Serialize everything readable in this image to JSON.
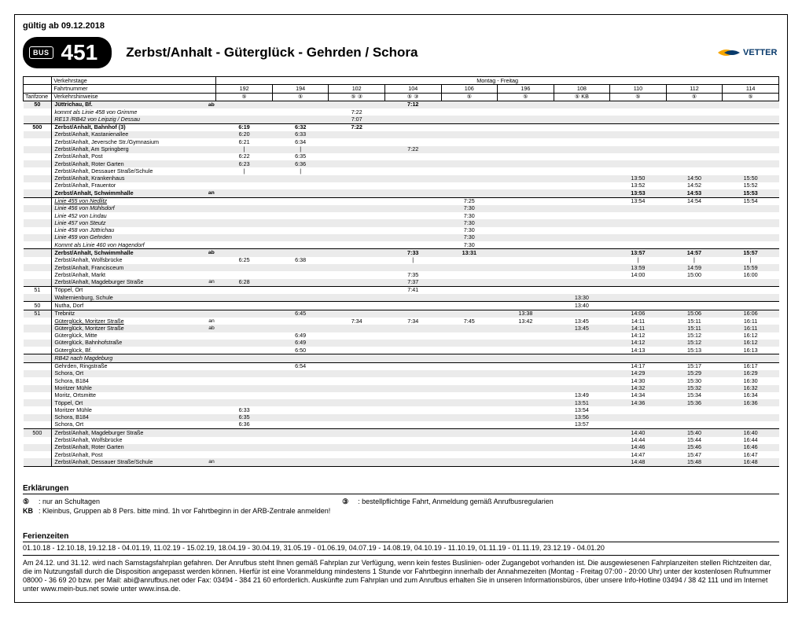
{
  "validity": "gültig ab 09.12.2018",
  "bus_label": "BUS",
  "route_number": "451",
  "route_title": "Zerbst/Anhalt - Güterglück - Gehrden / Schora",
  "logo_text": "VETTER",
  "days_label": "Montag - Freitag",
  "header_labels": {
    "verkehrstage": "Verkehrstage",
    "fahrtnummer": "Fahrtnummer",
    "tarifzone": "Tarifzone",
    "verkehrshinweise": "Verkehrshinweise"
  },
  "trips": [
    "192",
    "194",
    "102",
    "104",
    "106",
    "196",
    "108",
    "110",
    "112",
    "114"
  ],
  "hints": [
    "⑤",
    "⑤",
    "⑤    ③",
    "⑤    ③",
    "⑤",
    "⑤",
    "⑤    KB",
    "⑤",
    "⑤",
    "⑤"
  ],
  "rows": [
    {
      "zone": "50",
      "stop": "Jüttrichau, Bf.",
      "ab": "ab",
      "bold": true,
      "stripe": true,
      "sep_top": true,
      "t": [
        "",
        "",
        "",
        "7:12",
        "",
        "",
        "",
        "",
        "",
        ""
      ]
    },
    {
      "stop": "kommt als Linie 458 von Grimme",
      "italic": true,
      "t": [
        "",
        "",
        "7:22",
        "",
        "",
        "",
        "",
        "",
        "",
        ""
      ]
    },
    {
      "stop": "RE13 /RB42 von Leipzig / Dessau",
      "italic": true,
      "stripe": true,
      "t": [
        "",
        "",
        "7:07",
        "",
        "",
        "",
        "",
        "",
        "",
        ""
      ]
    },
    {
      "zone": "500",
      "stop": "Zerbst/Anhalt, Bahnhof (3)",
      "bold": true,
      "sep_top": true,
      "t": [
        "6:19",
        "6:32",
        "7:22",
        "",
        "",
        "",
        "",
        "",
        "",
        ""
      ]
    },
    {
      "stop": "Zerbst/Anhalt, Kastanienallee",
      "stripe": true,
      "t": [
        "6:20",
        "6:33",
        "",
        "",
        "",
        "",
        "",
        "",
        "",
        ""
      ]
    },
    {
      "stop": "Zerbst/Anhalt, Jeversche Str./Gymnasium",
      "t": [
        "6:21",
        "6:34",
        "",
        "",
        "",
        "",
        "",
        "",
        "",
        ""
      ]
    },
    {
      "stop": "Zerbst/Anhalt, Am Springberg",
      "stripe": true,
      "t": [
        "|",
        "|",
        "",
        "7:22",
        "",
        "",
        "",
        "",
        "",
        ""
      ]
    },
    {
      "stop": "Zerbst/Anhalt, Post",
      "t": [
        "6:22",
        "6:35",
        "",
        "",
        "",
        "",
        "",
        "",
        "",
        ""
      ]
    },
    {
      "stop": "Zerbst/Anhalt, Roter Garten",
      "stripe": true,
      "t": [
        "6:23",
        "6:36",
        "",
        "",
        "",
        "",
        "",
        "",
        "",
        ""
      ]
    },
    {
      "stop": "Zerbst/Anhalt, Dessauer Straße/Schule",
      "t": [
        "|",
        "|",
        "",
        "",
        "",
        "",
        "",
        "",
        "",
        ""
      ]
    },
    {
      "stop": "Zerbst/Anhalt, Krankenhaus",
      "stripe": true,
      "t": [
        "",
        "",
        "",
        "",
        "",
        "",
        "",
        "13:50",
        "14:50",
        "15:50"
      ]
    },
    {
      "stop": "Zerbst/Anhalt, Frauentor",
      "t": [
        "",
        "",
        "",
        "",
        "",
        "",
        "",
        "13:52",
        "14:52",
        "15:52"
      ]
    },
    {
      "stop": "Zerbst/Anhalt, Schwimmhalle",
      "ab": "an",
      "bold": true,
      "stripe": true,
      "t": [
        "",
        "",
        "",
        "",
        "",
        "",
        "",
        "13:53",
        "14:53",
        "15:53"
      ]
    },
    {
      "stop": "Linie 455 von Nedlitz",
      "italic": true,
      "underline": true,
      "sep_top": true,
      "t": [
        "",
        "",
        "",
        "",
        "7:25",
        "",
        "",
        "13:54",
        "14:54",
        "15:54"
      ]
    },
    {
      "stop": "Linie 456 von Mühlsdorf",
      "italic": true,
      "stripe": true,
      "t": [
        "",
        "",
        "",
        "",
        "7:30",
        "",
        "",
        "",
        "",
        ""
      ]
    },
    {
      "stop": "Linie 452 von Lindau",
      "italic": true,
      "t": [
        "",
        "",
        "",
        "",
        "7:30",
        "",
        "",
        "",
        "",
        ""
      ]
    },
    {
      "stop": "Linie 457 von Steutz",
      "italic": true,
      "stripe": true,
      "t": [
        "",
        "",
        "",
        "",
        "7:30",
        "",
        "",
        "",
        "",
        ""
      ]
    },
    {
      "stop": "Linie 458 von Jüttrichau",
      "italic": true,
      "t": [
        "",
        "",
        "",
        "",
        "7:30",
        "",
        "",
        "",
        "",
        ""
      ]
    },
    {
      "stop": "Linie 459 von Gehrden",
      "italic": true,
      "stripe": true,
      "t": [
        "",
        "",
        "",
        "",
        "7:30",
        "",
        "",
        "",
        "",
        ""
      ]
    },
    {
      "stop": "Kommt als Linie 460 von Hagendorf",
      "italic": true,
      "t": [
        "",
        "",
        "",
        "",
        "7:30",
        "",
        "",
        "",
        "",
        ""
      ]
    },
    {
      "stop": "Zerbst/Anhalt, Schwimmhalle",
      "ab": "ab",
      "bold": true,
      "stripe": true,
      "sep_top": true,
      "t": [
        "",
        "",
        "",
        "7:33",
        "13:31",
        "",
        "",
        "13:57",
        "14:57",
        "15:57"
      ]
    },
    {
      "stop": "Zerbst/Anhalt, Wolfsbrücke",
      "t": [
        "6:25",
        "6:38",
        "",
        "|",
        "",
        "",
        "",
        "|",
        "|",
        "|"
      ]
    },
    {
      "stop": "Zerbst/Anhalt, Francisceum",
      "stripe": true,
      "t": [
        "",
        "",
        "",
        "",
        "",
        "",
        "",
        "13:59",
        "14:59",
        "15:59"
      ]
    },
    {
      "stop": "Zerbst/Anhalt, Markt",
      "t": [
        "",
        "",
        "",
        "7:35",
        "",
        "",
        "",
        "14:00",
        "15:00",
        "16:00"
      ]
    },
    {
      "stop": "Zerbst/Anhalt, Magdeburger Straße",
      "ab": "an",
      "stripe": true,
      "t": [
        "6:28",
        "",
        "",
        "7:37",
        "",
        "",
        "",
        "",
        "",
        ""
      ]
    },
    {
      "zone": "51",
      "stop": "Töppel, Ort",
      "sep_top": true,
      "t": [
        "",
        "",
        "",
        "7:41",
        "",
        "",
        "",
        "",
        "",
        ""
      ]
    },
    {
      "stop": "Walternienburg, Schule",
      "stripe": true,
      "t": [
        "",
        "",
        "",
        "",
        "",
        "",
        "13:30",
        "",
        "",
        ""
      ]
    },
    {
      "zone": "50",
      "stop": "Nutha, Dorf",
      "sep_top": true,
      "t": [
        "",
        "",
        "",
        "",
        "",
        "",
        "13:40",
        "",
        "",
        ""
      ]
    },
    {
      "zone": "51",
      "stop": "Trebnitz",
      "stripe": true,
      "sep_top": true,
      "t": [
        "",
        "6:45",
        "",
        "",
        "",
        "13:38",
        "",
        "14:06",
        "15:06",
        "16:06"
      ]
    },
    {
      "stop": "Güterglück, Moritzer Straße",
      "ab": "an",
      "underline": true,
      "t": [
        "",
        "",
        "7:34",
        "7:34",
        "7:45",
        "13:42",
        "13:45",
        "14:11",
        "15:11",
        "16:11"
      ]
    },
    {
      "stop": "Güterglück, Moritzer Straße",
      "ab": "ab",
      "stripe": true,
      "t": [
        "",
        "",
        "",
        "",
        "",
        "",
        "13:45",
        "14:11",
        "15:11",
        "16:11"
      ]
    },
    {
      "stop": "Güterglück, Mitte",
      "t": [
        "",
        "6:49",
        "",
        "",
        "",
        "",
        "",
        "14:12",
        "15:12",
        "16:12"
      ]
    },
    {
      "stop": "Güterglück, Bahnhofstraße",
      "stripe": true,
      "t": [
        "",
        "6:49",
        "",
        "",
        "",
        "",
        "",
        "14:12",
        "15:12",
        "16:12"
      ]
    },
    {
      "stop": "Güterglück, Bf.",
      "t": [
        "",
        "6:50",
        "",
        "",
        "",
        "",
        "",
        "14:13",
        "15:13",
        "16:13"
      ]
    },
    {
      "stop": "RB42 nach Magdeburg",
      "italic": true,
      "stripe": true,
      "sep_top": true,
      "sep_bot": true,
      "t": [
        "",
        "",
        "",
        "",
        "",
        "",
        "",
        "",
        "",
        ""
      ]
    },
    {
      "stop": "Gehrden, Ringstraße",
      "t": [
        "",
        "6:54",
        "",
        "",
        "",
        "",
        "",
        "14:17",
        "15:17",
        "16:17"
      ]
    },
    {
      "stop": "Schora, Ort",
      "stripe": true,
      "t": [
        "",
        "",
        "",
        "",
        "",
        "",
        "",
        "14:29",
        "15:29",
        "16:29"
      ]
    },
    {
      "stop": "Schora, B184",
      "t": [
        "",
        "",
        "",
        "",
        "",
        "",
        "",
        "14:30",
        "15:30",
        "16:30"
      ]
    },
    {
      "stop": "Moritzer Mühle",
      "stripe": true,
      "t": [
        "",
        "",
        "",
        "",
        "",
        "",
        "",
        "14:32",
        "15:32",
        "16:32"
      ]
    },
    {
      "stop": "Moritz, Ortsmitte",
      "t": [
        "",
        "",
        "",
        "",
        "",
        "",
        "13:49",
        "14:34",
        "15:34",
        "16:34"
      ]
    },
    {
      "stop": "Töppel, Ort",
      "stripe": true,
      "t": [
        "",
        "",
        "",
        "",
        "",
        "",
        "13:51",
        "14:36",
        "15:36",
        "16:36"
      ]
    },
    {
      "stop": "Moritzer Mühle",
      "t": [
        "6:33",
        "",
        "",
        "",
        "",
        "",
        "13:54",
        "",
        "",
        ""
      ]
    },
    {
      "stop": "Schora, B184",
      "stripe": true,
      "t": [
        "6:35",
        "",
        "",
        "",
        "",
        "",
        "13:56",
        "",
        "",
        ""
      ]
    },
    {
      "stop": "Schora, Ort",
      "t": [
        "6:36",
        "",
        "",
        "",
        "",
        "",
        "13:57",
        "",
        "",
        ""
      ]
    },
    {
      "zone": "500",
      "stop": "Zerbst/Anhalt, Magdeburger Straße",
      "stripe": true,
      "sep_top": true,
      "t": [
        "",
        "",
        "",
        "",
        "",
        "",
        "",
        "14:40",
        "15:40",
        "16:40"
      ]
    },
    {
      "stop": "Zerbst/Anhalt, Wolfsbrücke",
      "t": [
        "",
        "",
        "",
        "",
        "",
        "",
        "",
        "14:44",
        "15:44",
        "16:44"
      ]
    },
    {
      "stop": "Zerbst/Anhalt, Roter Garten",
      "stripe": true,
      "t": [
        "",
        "",
        "",
        "",
        "",
        "",
        "",
        "14:46",
        "15:46",
        "16:46"
      ]
    },
    {
      "stop": "Zerbst/Anhalt, Post",
      "t": [
        "",
        "",
        "",
        "",
        "",
        "",
        "",
        "14:47",
        "15:47",
        "16:47"
      ]
    },
    {
      "stop": "Zerbst/Anhalt, Dessauer Straße/Schule",
      "ab": "an",
      "stripe": true,
      "sep_bot": true,
      "t": [
        "",
        "",
        "",
        "",
        "",
        "",
        "",
        "14:48",
        "15:48",
        "16:48"
      ]
    }
  ],
  "erk_title": "Erklärungen",
  "erk": [
    {
      "sym": "⑤",
      "text": ": nur an Schultagen"
    },
    {
      "sym": "③",
      "text": ": bestellpflichtige Fahrt, Anmeldung gemäß Anrufbusregularien"
    },
    {
      "sym": "KB",
      "text": ": Kleinbus, Gruppen ab 8 Pers. bitte mind. 1h vor Fahrtbeginn in der ARB-Zentrale anmelden!"
    }
  ],
  "ferien_title": "Ferienzeiten",
  "ferien_text": "01.10.18 - 12.10.18,  19.12.18 - 04.01.19,  11.02.19 - 15.02.19,  18.04.19 - 30.04.19,  31.05.19 - 01.06.19,  04.07.19 - 14.08.19,  04.10.19 - 11.10.19,  01.11.19 - 01.11.19,  23.12.19 - 04.01.20",
  "footnote": "Am 24.12. und 31.12. wird nach Samstagsfahrplan gefahren. Der Anrufbus steht Ihnen gemäß Fahrplan zur Verfügung, wenn kein festes Buslinien- oder Zugangebot vorhanden ist. Die ausgewiesenen Fahrplanzeiten stellen Richtzeiten dar, die im Nutzungsfall durch die Disposition angepasst werden können. Hierfür ist eine Voranmeldung mindestens 1 Stunde vor Fahrtbeginn innerhalb der Annahmezeiten (Montag - Freitag 07:00 - 20:00 Uhr) unter der kostenlosen Rufnummer 08000 - 36 69 20 bzw. per Mail: abi@anrufbus.net oder Fax: 03494 - 384 21 60 erforderlich. Auskünfte zum Fahrplan und zum Anrufbus erhalten Sie in unseren Informationsbüros, über unsere Info-Hotline 03494 / 38 42 111 und im Internet unter www.mein-bus.net sowie unter www.insa.de."
}
